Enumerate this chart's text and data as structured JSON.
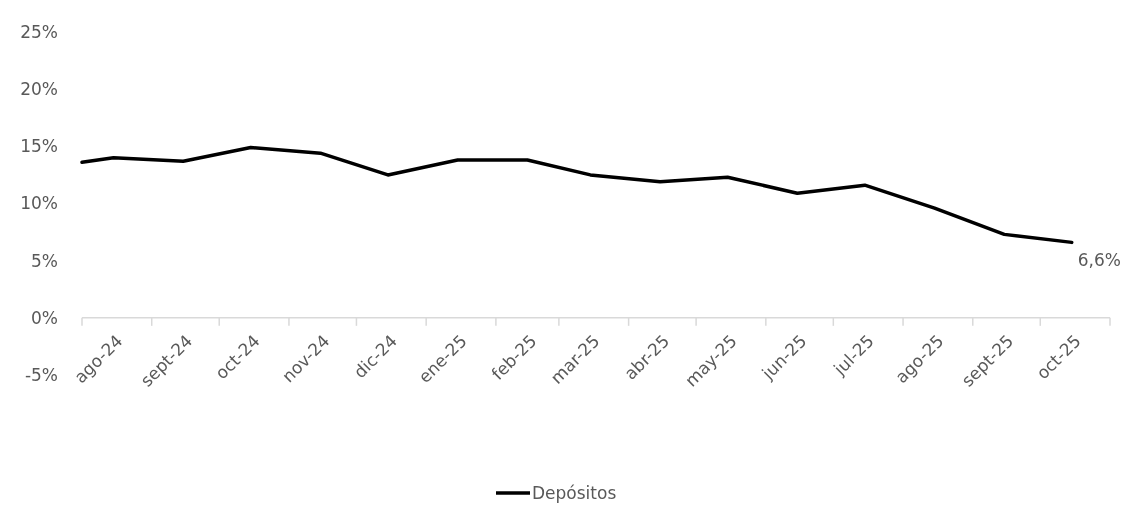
{
  "chart_data": {
    "type": "line",
    "x": [
      "2024-08-01",
      "2024-08-15",
      "2024-09-15",
      "2024-10-15",
      "2024-11-15",
      "2024-12-15",
      "2025-01-15",
      "2025-02-15",
      "2025-03-15",
      "2025-04-15",
      "2025-05-15",
      "2025-06-15",
      "2025-07-15",
      "2025-08-15",
      "2025-09-15",
      "2025-10-15"
    ],
    "series": [
      {
        "name": "Depósitos",
        "color": "#000000",
        "values": [
          13.6,
          14.0,
          13.7,
          14.9,
          14.4,
          12.5,
          13.8,
          13.8,
          12.5,
          11.9,
          12.3,
          10.9,
          11.6,
          9.6,
          7.3,
          6.6
        ],
        "value_labels": [
          null,
          null,
          null,
          null,
          null,
          null,
          null,
          null,
          null,
          null,
          null,
          null,
          null,
          null,
          null,
          "6,6%"
        ]
      }
    ],
    "xlim": [
      "2024-08-01",
      "2025-11-01"
    ],
    "xticks": [
      {
        "value": "2024-08-01",
        "label": null
      },
      {
        "value": "2024-08-15",
        "label": "ago-24"
      },
      {
        "value": "2024-09-01",
        "label": null
      },
      {
        "value": "2024-09-15",
        "label": "sept-24"
      },
      {
        "value": "2024-10-01",
        "label": null
      },
      {
        "value": "2024-10-15",
        "label": "oct-24"
      },
      {
        "value": "2024-11-01",
        "label": null
      },
      {
        "value": "2024-11-15",
        "label": "nov-24"
      },
      {
        "value": "2024-12-01",
        "label": null
      },
      {
        "value": "2024-12-15",
        "label": "dic-24"
      },
      {
        "value": "2025-01-01",
        "label": null
      },
      {
        "value": "2025-01-15",
        "label": "ene-25"
      },
      {
        "value": "2025-02-01",
        "label": null
      },
      {
        "value": "2025-02-15",
        "label": "feb-25"
      },
      {
        "value": "2025-03-01",
        "label": null
      },
      {
        "value": "2025-03-15",
        "label": "mar-25"
      },
      {
        "value": "2025-04-01",
        "label": null
      },
      {
        "value": "2025-04-15",
        "label": "abr-25"
      },
      {
        "value": "2025-05-01",
        "label": null
      },
      {
        "value": "2025-05-15",
        "label": "may-25"
      },
      {
        "value": "2025-06-01",
        "label": null
      },
      {
        "value": "2025-06-15",
        "label": "jun-25"
      },
      {
        "value": "2025-07-01",
        "label": null
      },
      {
        "value": "2025-07-15",
        "label": "jul-25"
      },
      {
        "value": "2025-08-01",
        "label": null
      },
      {
        "value": "2025-08-15",
        "label": "ago-25"
      },
      {
        "value": "2025-09-01",
        "label": null
      },
      {
        "value": "2025-09-15",
        "label": "sept-25"
      },
      {
        "value": "2025-10-01",
        "label": null
      },
      {
        "value": "2025-10-15",
        "label": "oct-25"
      },
      {
        "value": "2025-11-01",
        "label": null
      }
    ],
    "ylim": [
      -5,
      25
    ],
    "yticks": [
      {
        "value": -5,
        "label": "-5%"
      },
      {
        "value": 0,
        "label": "0%"
      },
      {
        "value": 5,
        "label": "5%"
      },
      {
        "value": 10,
        "label": "10%"
      },
      {
        "value": 15,
        "label": "15%"
      },
      {
        "value": 20,
        "label": "20%"
      },
      {
        "value": 25,
        "label": "25%"
      }
    ],
    "grid": false,
    "legend": "bottom",
    "marker": "none",
    "line_style": "solid"
  }
}
